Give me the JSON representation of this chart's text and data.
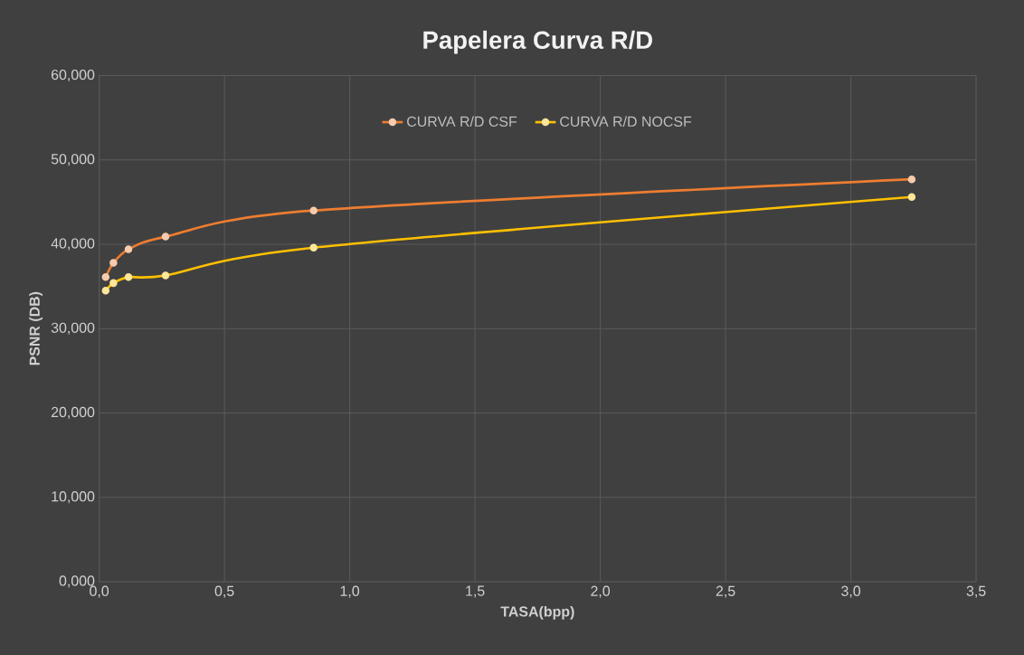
{
  "chart_data": {
    "type": "line",
    "title": "Papelera Curva R/D",
    "xlabel": "TASA(bpp)",
    "ylabel": "PSNR (DB)",
    "series": [
      {
        "name": "CURVA R/D CSF",
        "color": "#ed7d31",
        "x": [
          0.026,
          0.057,
          0.117,
          0.265,
          0.856,
          3.243
        ],
        "values": [
          36.1,
          37.8,
          39.4,
          40.9,
          44.0,
          47.7
        ]
      },
      {
        "name": "CURVA R/D NOCSF",
        "color": "#ffc000",
        "x": [
          0.026,
          0.057,
          0.117,
          0.265,
          0.856,
          3.243
        ],
        "values": [
          34.5,
          35.4,
          36.1,
          36.3,
          39.6,
          45.6
        ]
      }
    ],
    "xlim": [
      0,
      3.5
    ],
    "ylim": [
      0,
      60
    ],
    "xticks": [
      {
        "value": 0,
        "label": "0,0"
      },
      {
        "value": 0.5,
        "label": "0,5"
      },
      {
        "value": 1,
        "label": "1,0"
      },
      {
        "value": 1.5,
        "label": "1,5"
      },
      {
        "value": 2,
        "label": "2,0"
      },
      {
        "value": 2.5,
        "label": "2,5"
      },
      {
        "value": 3,
        "label": "3,0"
      },
      {
        "value": 3.5,
        "label": "3,5"
      }
    ],
    "yticks": [
      {
        "value": 0,
        "label": "0,000"
      },
      {
        "value": 10,
        "label": "10,000"
      },
      {
        "value": 20,
        "label": "20,000"
      },
      {
        "value": 30,
        "label": "30,000"
      },
      {
        "value": 40,
        "label": "40,000"
      },
      {
        "value": 50,
        "label": "50,000"
      },
      {
        "value": 60,
        "label": "60,000"
      }
    ],
    "grid": true,
    "legend": "top",
    "marker": "circle",
    "line_style": "solid"
  }
}
